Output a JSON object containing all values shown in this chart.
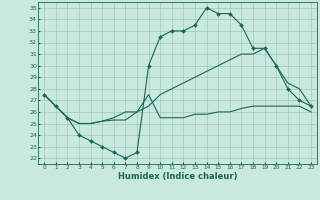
{
  "background_color": "#c8e8e0",
  "grid_color": "#a0c8c0",
  "line_color": "#1a6655",
  "xlabel": "Humidex (Indice chaleur)",
  "xlim": [
    -0.5,
    23.5
  ],
  "ylim": [
    21.5,
    35.5
  ],
  "yticks": [
    22,
    23,
    24,
    25,
    26,
    27,
    28,
    29,
    30,
    31,
    32,
    33,
    34,
    35
  ],
  "xticks": [
    0,
    1,
    2,
    3,
    4,
    5,
    6,
    7,
    8,
    9,
    10,
    11,
    12,
    13,
    14,
    15,
    16,
    17,
    18,
    19,
    20,
    21,
    22,
    23
  ],
  "line1_x": [
    0,
    1,
    2,
    3,
    4,
    5,
    6,
    7,
    8,
    9,
    10,
    11,
    12,
    13,
    14,
    15,
    16,
    17,
    18,
    19,
    20,
    21,
    22,
    23
  ],
  "line1_y": [
    27.5,
    26.5,
    25.5,
    24.0,
    23.5,
    23.0,
    22.5,
    22.0,
    22.5,
    30.0,
    32.5,
    33.0,
    33.0,
    33.5,
    35.0,
    34.5,
    34.5,
    33.5,
    31.5,
    31.5,
    30.0,
    28.0,
    27.0,
    26.5
  ],
  "line2_x": [
    0,
    2,
    3,
    4,
    5,
    6,
    7,
    8,
    9,
    10,
    11,
    12,
    13,
    14,
    15,
    16,
    17,
    18,
    19,
    20,
    21,
    22,
    23
  ],
  "line2_y": [
    27.5,
    25.5,
    25.0,
    25.0,
    25.2,
    25.3,
    25.3,
    26.0,
    27.5,
    25.5,
    25.5,
    25.5,
    25.8,
    25.8,
    26.0,
    26.0,
    26.3,
    26.5,
    26.5,
    26.5,
    26.5,
    26.5,
    26.0
  ],
  "line3_x": [
    0,
    2,
    3,
    4,
    5,
    6,
    7,
    8,
    9,
    10,
    11,
    12,
    13,
    14,
    15,
    16,
    17,
    18,
    19,
    20,
    21,
    22,
    23
  ],
  "line3_y": [
    27.5,
    25.5,
    25.0,
    25.0,
    25.2,
    25.5,
    26.0,
    26.0,
    26.5,
    27.5,
    28.0,
    28.5,
    29.0,
    29.5,
    30.0,
    30.5,
    31.0,
    31.0,
    31.5,
    30.0,
    28.5,
    28.0,
    26.5
  ]
}
